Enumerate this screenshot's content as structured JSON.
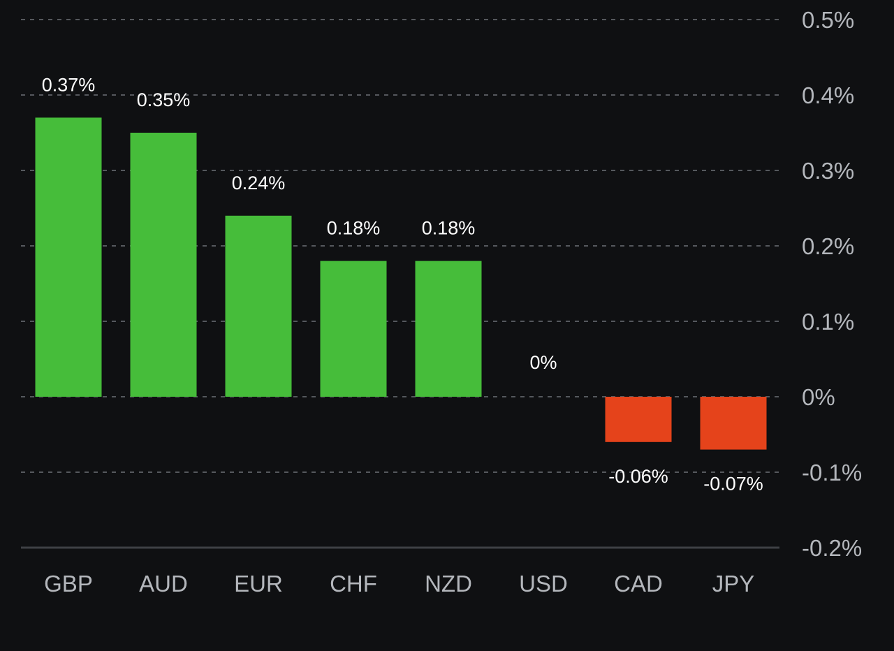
{
  "chart_data": {
    "type": "bar",
    "title": "",
    "xlabel": "",
    "ylabel": "",
    "categories": [
      "GBP",
      "AUD",
      "EUR",
      "CHF",
      "NZD",
      "USD",
      "CAD",
      "JPY"
    ],
    "values": [
      0.37,
      0.35,
      0.24,
      0.18,
      0.18,
      0,
      -0.06,
      -0.07
    ],
    "value_labels": [
      "0.37%",
      "0.35%",
      "0.24%",
      "0.18%",
      "0.18%",
      "0%",
      "-0.06%",
      "-0.07%"
    ],
    "ylim": [
      -0.2,
      0.5
    ],
    "yticks": [
      0.5,
      0.4,
      0.3,
      0.2,
      0.1,
      0,
      -0.1,
      -0.2
    ],
    "ytick_labels": [
      "0.5%",
      "0.4%",
      "0.3%",
      "0.2%",
      "0.1%",
      "0%",
      "-0.1%",
      "-0.2%"
    ],
    "y_axis_position": "right",
    "grid": true,
    "legend": "none",
    "colors": {
      "positive": "#46bd3a",
      "negative": "#e5431b",
      "background": "#0f1012"
    }
  }
}
